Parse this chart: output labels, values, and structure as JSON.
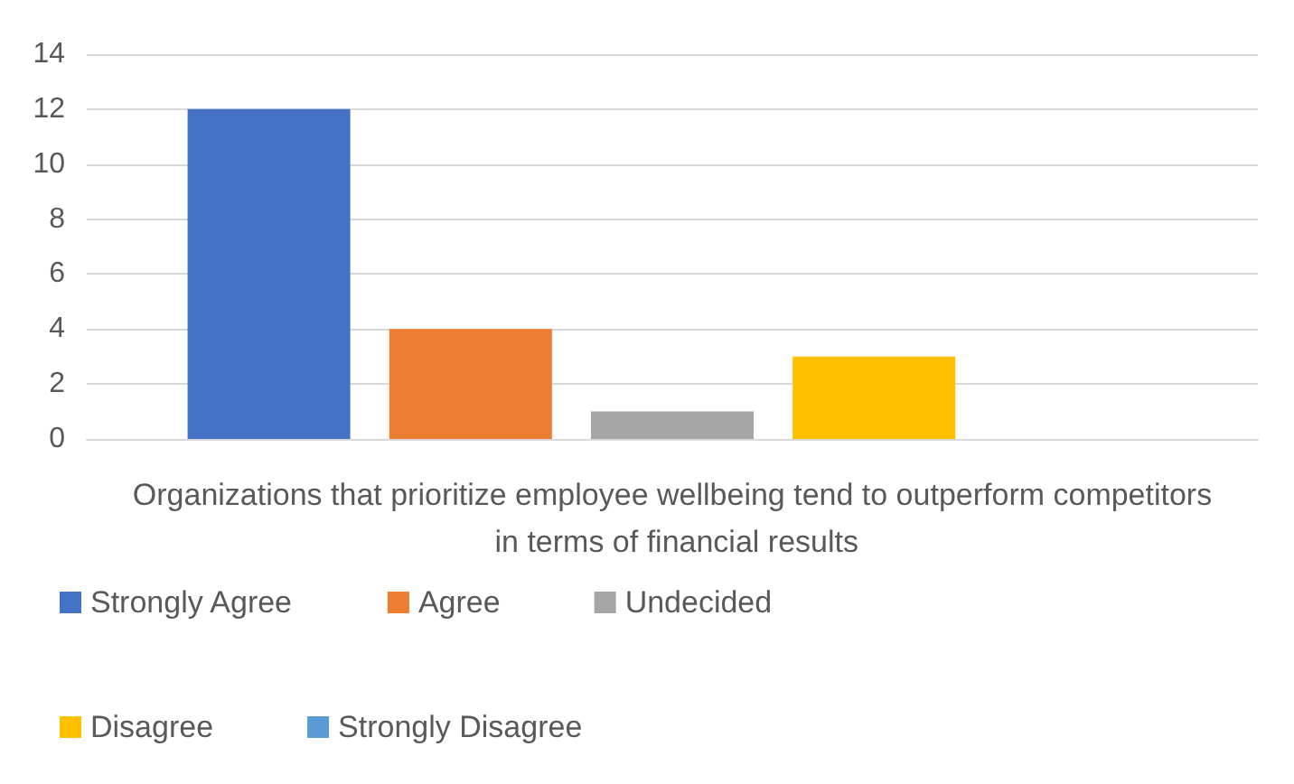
{
  "chart_data": {
    "type": "bar",
    "categories": [
      "Organizations that prioritize employee wellbeing tend to outperform competitors in terms of financial results"
    ],
    "series": [
      {
        "name": "Strongly Agree",
        "color": "#4472c4",
        "values": [
          12
        ]
      },
      {
        "name": "Agree",
        "color": "#ed7d31",
        "values": [
          4
        ]
      },
      {
        "name": "Undecided",
        "color": "#a5a5a5",
        "values": [
          1
        ]
      },
      {
        "name": "Disagree",
        "color": "#ffc000",
        "values": [
          3
        ]
      },
      {
        "name": "Strongly Disagree",
        "color": "#5b9bd5",
        "values": [
          0
        ]
      }
    ],
    "ylim": [
      0,
      14
    ],
    "yticks": [
      0,
      2,
      4,
      6,
      8,
      10,
      12,
      14
    ],
    "grid": "y",
    "legend": "bottom"
  }
}
